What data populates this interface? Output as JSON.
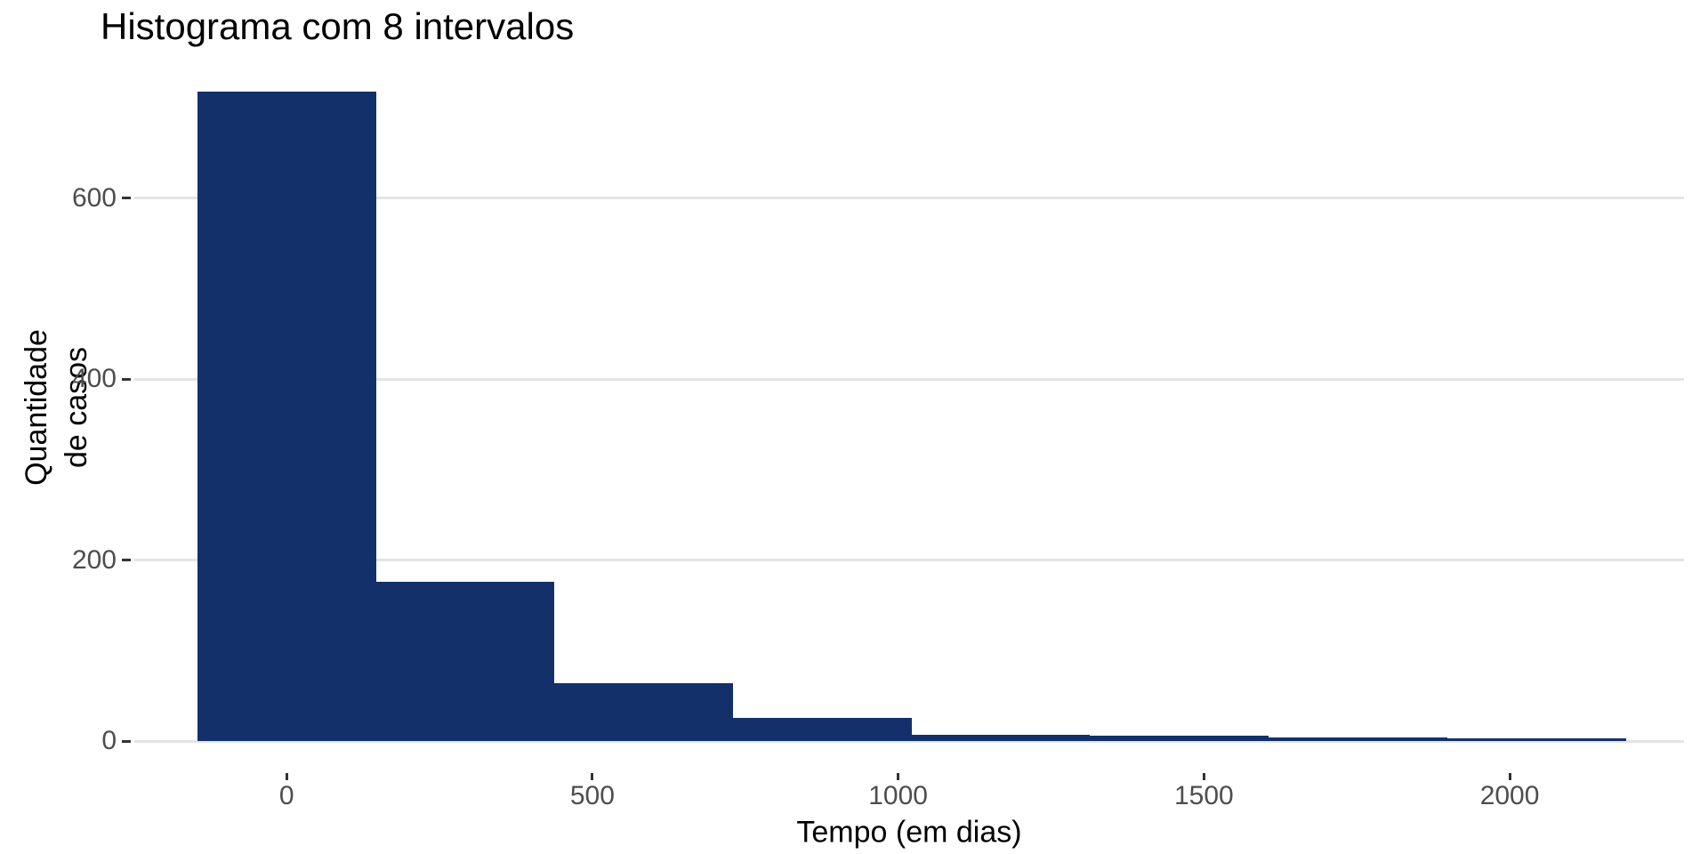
{
  "chart_data": {
    "type": "bar",
    "subtype": "histogram",
    "title": "Histograma com 8 intervalos",
    "xlabel": "Tempo (em dias)",
    "ylabel": "Quantidade de casos",
    "ylabel_lines": [
      "Quantidade",
      "de casos"
    ],
    "bin_width_days": 292,
    "bin_edges": [
      -146,
      146,
      438,
      730,
      1022,
      1314,
      1606,
      1898,
      2190
    ],
    "counts": [
      718,
      176,
      64,
      26,
      7,
      6,
      4,
      3
    ],
    "x_ticks": [
      0,
      500,
      1000,
      1500,
      2000
    ],
    "y_ticks": [
      0,
      200,
      400,
      600
    ],
    "x_domain": [
      -249,
      2285
    ],
    "y_domain": [
      0,
      760
    ],
    "grid": "horizontal-only",
    "legend": "none",
    "colors": {
      "bar_fill": "#13306B",
      "gridline": "#E4E4E4",
      "tick_mark": "#333333",
      "tick_label": "#4D4D4D",
      "title": "#000000",
      "axis_title": "#000000",
      "background": "#FFFFFF"
    }
  }
}
